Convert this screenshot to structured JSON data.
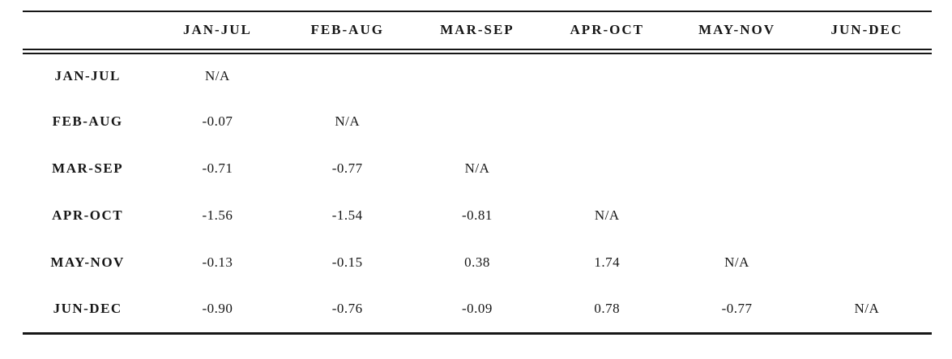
{
  "table": {
    "corner_label": "",
    "columns": [
      "JAN-JUL",
      "FEB-AUG",
      "MAR-SEP",
      "APR-OCT",
      "MAY-NOV",
      "JUN-DEC"
    ],
    "rows": [
      {
        "label": "JAN-JUL",
        "values": [
          "N/A",
          "",
          "",
          "",
          "",
          ""
        ]
      },
      {
        "label": "FEB-AUG",
        "values": [
          "-0.07",
          "N/A",
          "",
          "",
          "",
          ""
        ]
      },
      {
        "label": "MAR-SEP",
        "values": [
          "-0.71",
          "-0.77",
          "N/A",
          "",
          "",
          ""
        ]
      },
      {
        "label": "APR-OCT",
        "values": [
          "-1.56",
          "-1.54",
          "-0.81",
          "N/A",
          "",
          ""
        ]
      },
      {
        "label": "MAY-NOV",
        "values": [
          "-0.13",
          "-0.15",
          "0.38",
          "1.74",
          "N/A",
          ""
        ]
      },
      {
        "label": "JUN-DEC",
        "values": [
          "-0.90",
          "-0.76",
          "-0.09",
          "0.78",
          "-0.77",
          "N/A"
        ]
      }
    ],
    "colors": {
      "text": "#161616",
      "rule": "#161616",
      "background": "#ffffff"
    }
  }
}
